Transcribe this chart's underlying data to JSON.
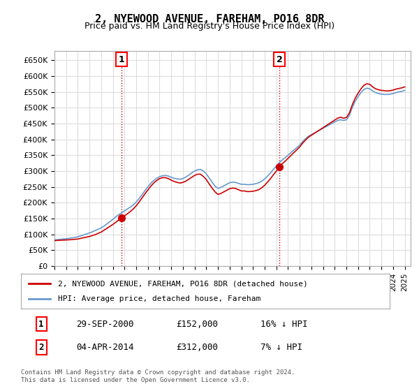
{
  "title": "2, NYEWOOD AVENUE, FAREHAM, PO16 8DR",
  "subtitle": "Price paid vs. HM Land Registry's House Price Index (HPI)",
  "ylabel_format": "£{0}K",
  "ylim": [
    0,
    680000
  ],
  "yticks": [
    0,
    50000,
    100000,
    150000,
    200000,
    250000,
    300000,
    350000,
    400000,
    450000,
    500000,
    550000,
    600000,
    650000
  ],
  "xlim_start": 1995.0,
  "xlim_end": 2025.5,
  "line_color_hpi": "#6699cc",
  "line_color_price": "#cc0000",
  "marker_color": "#cc0000",
  "grid_color": "#dddddd",
  "bg_color": "#ffffff",
  "transaction1": {
    "date_num": 2000.75,
    "price": 152000,
    "label": "1"
  },
  "transaction2": {
    "date_num": 2014.25,
    "price": 312000,
    "label": "2"
  },
  "legend_line1": "2, NYEWOOD AVENUE, FAREHAM, PO16 8DR (detached house)",
  "legend_line2": "HPI: Average price, detached house, Fareham",
  "table_row1": [
    "1",
    "29-SEP-2000",
    "£152,000",
    "16% ↓ HPI"
  ],
  "table_row2": [
    "2",
    "04-APR-2014",
    "£312,000",
    "7% ↓ HPI"
  ],
  "footnote": "Contains HM Land Registry data © Crown copyright and database right 2024.\nThis data is licensed under the Open Government Licence v3.0.",
  "marker_vline_color": "#cc0000",
  "marker_vline_style": ":",
  "hpi_years": [
    1995.0,
    1995.25,
    1995.5,
    1995.75,
    1996.0,
    1996.25,
    1996.5,
    1996.75,
    1997.0,
    1997.25,
    1997.5,
    1997.75,
    1998.0,
    1998.25,
    1998.5,
    1998.75,
    1999.0,
    1999.25,
    1999.5,
    1999.75,
    2000.0,
    2000.25,
    2000.5,
    2000.75,
    2001.0,
    2001.25,
    2001.5,
    2001.75,
    2002.0,
    2002.25,
    2002.5,
    2002.75,
    2003.0,
    2003.25,
    2003.5,
    2003.75,
    2004.0,
    2004.25,
    2004.5,
    2004.75,
    2005.0,
    2005.25,
    2005.5,
    2005.75,
    2006.0,
    2006.25,
    2006.5,
    2006.75,
    2007.0,
    2007.25,
    2007.5,
    2007.75,
    2008.0,
    2008.25,
    2008.5,
    2008.75,
    2009.0,
    2009.25,
    2009.5,
    2009.75,
    2010.0,
    2010.25,
    2010.5,
    2010.75,
    2011.0,
    2011.25,
    2011.5,
    2011.75,
    2012.0,
    2012.25,
    2012.5,
    2012.75,
    2013.0,
    2013.25,
    2013.5,
    2013.75,
    2014.0,
    2014.25,
    2014.5,
    2014.75,
    2015.0,
    2015.25,
    2015.5,
    2015.75,
    2016.0,
    2016.25,
    2016.5,
    2016.75,
    2017.0,
    2017.25,
    2017.5,
    2017.75,
    2018.0,
    2018.25,
    2018.5,
    2018.75,
    2019.0,
    2019.25,
    2019.5,
    2019.75,
    2020.0,
    2020.25,
    2020.5,
    2020.75,
    2021.0,
    2021.25,
    2021.5,
    2021.75,
    2022.0,
    2022.25,
    2022.5,
    2022.75,
    2023.0,
    2023.25,
    2023.5,
    2023.75,
    2024.0,
    2024.25,
    2024.5,
    2024.75,
    2025.0
  ],
  "hpi_values": [
    82000,
    83000,
    84000,
    85000,
    86000,
    87000,
    88500,
    90000,
    92000,
    95000,
    98000,
    101000,
    104000,
    108000,
    112000,
    116000,
    120000,
    126000,
    133000,
    140000,
    147000,
    155000,
    162000,
    168000,
    174000,
    180000,
    186000,
    193000,
    202000,
    213000,
    225000,
    238000,
    250000,
    261000,
    270000,
    277000,
    282000,
    285000,
    286000,
    284000,
    280000,
    277000,
    275000,
    274000,
    276000,
    281000,
    287000,
    294000,
    300000,
    304000,
    305000,
    300000,
    291000,
    278000,
    265000,
    252000,
    245000,
    248000,
    253000,
    258000,
    263000,
    265000,
    264000,
    261000,
    258000,
    258000,
    257000,
    257000,
    258000,
    260000,
    263000,
    268000,
    275000,
    284000,
    294000,
    305000,
    316000,
    326000,
    335000,
    342000,
    350000,
    358000,
    366000,
    374000,
    382000,
    393000,
    402000,
    410000,
    415000,
    420000,
    425000,
    430000,
    435000,
    440000,
    445000,
    450000,
    455000,
    460000,
    462000,
    460000,
    462000,
    475000,
    500000,
    520000,
    535000,
    548000,
    558000,
    562000,
    560000,
    553000,
    548000,
    545000,
    543000,
    542000,
    542000,
    543000,
    545000,
    548000,
    550000,
    552000,
    555000
  ],
  "price_years": [
    1995.0,
    1995.25,
    1995.5,
    1995.75,
    1996.0,
    1996.25,
    1996.5,
    1996.75,
    1997.0,
    1997.25,
    1997.5,
    1997.75,
    1998.0,
    1998.25,
    1998.5,
    1998.75,
    1999.0,
    1999.25,
    1999.5,
    1999.75,
    2000.0,
    2000.25,
    2000.5,
    2000.75,
    2001.0,
    2001.25,
    2001.5,
    2001.75,
    2002.0,
    2002.25,
    2002.5,
    2002.75,
    2003.0,
    2003.25,
    2003.5,
    2003.75,
    2004.0,
    2004.25,
    2004.5,
    2004.75,
    2005.0,
    2005.25,
    2005.5,
    2005.75,
    2006.0,
    2006.25,
    2006.5,
    2006.75,
    2007.0,
    2007.25,
    2007.5,
    2007.75,
    2008.0,
    2008.25,
    2008.5,
    2008.75,
    2009.0,
    2009.25,
    2009.5,
    2009.75,
    2010.0,
    2010.25,
    2010.5,
    2010.75,
    2011.0,
    2011.25,
    2011.5,
    2011.75,
    2012.0,
    2012.25,
    2012.5,
    2012.75,
    2013.0,
    2013.25,
    2013.5,
    2013.75,
    2014.0,
    2014.25,
    2014.5,
    2014.75,
    2015.0,
    2015.25,
    2015.5,
    2015.75,
    2016.0,
    2016.25,
    2016.5,
    2016.75,
    2017.0,
    2017.25,
    2017.5,
    2017.75,
    2018.0,
    2018.25,
    2018.5,
    2018.75,
    2019.0,
    2019.25,
    2019.5,
    2019.75,
    2020.0,
    2020.25,
    2020.5,
    2020.75,
    2021.0,
    2021.25,
    2021.5,
    2021.75,
    2022.0,
    2022.25,
    2022.5,
    2022.75,
    2023.0,
    2023.25,
    2023.5,
    2023.75,
    2024.0,
    2024.25,
    2024.5,
    2024.75,
    2025.0
  ],
  "price_values": [
    80000,
    80500,
    81000,
    81500,
    82000,
    82500,
    83000,
    84000,
    85000,
    87000,
    89000,
    91000,
    93000,
    96000,
    99000,
    103000,
    107000,
    113000,
    119000,
    125000,
    131000,
    138000,
    145000,
    152000,
    158000,
    165000,
    172000,
    180000,
    190000,
    202000,
    215000,
    228000,
    240000,
    252000,
    262000,
    270000,
    276000,
    279000,
    279000,
    276000,
    271000,
    267000,
    264000,
    262000,
    264000,
    268000,
    274000,
    280000,
    286000,
    290000,
    290000,
    283000,
    273000,
    259000,
    246000,
    234000,
    226000,
    229000,
    234000,
    239000,
    244000,
    246000,
    245000,
    241000,
    237000,
    237000,
    235000,
    235000,
    236000,
    238000,
    241000,
    247000,
    255000,
    265000,
    276000,
    288000,
    300000,
    312000,
    323000,
    331000,
    340000,
    349000,
    358000,
    367000,
    376000,
    388000,
    398000,
    407000,
    413000,
    419000,
    425000,
    431000,
    437000,
    443000,
    449000,
    455000,
    461000,
    467000,
    470000,
    467000,
    469000,
    483000,
    509000,
    530000,
    546000,
    560000,
    571000,
    576000,
    574000,
    566000,
    560000,
    557000,
    555000,
    554000,
    553000,
    554000,
    556000,
    559000,
    561000,
    563000,
    566000
  ]
}
